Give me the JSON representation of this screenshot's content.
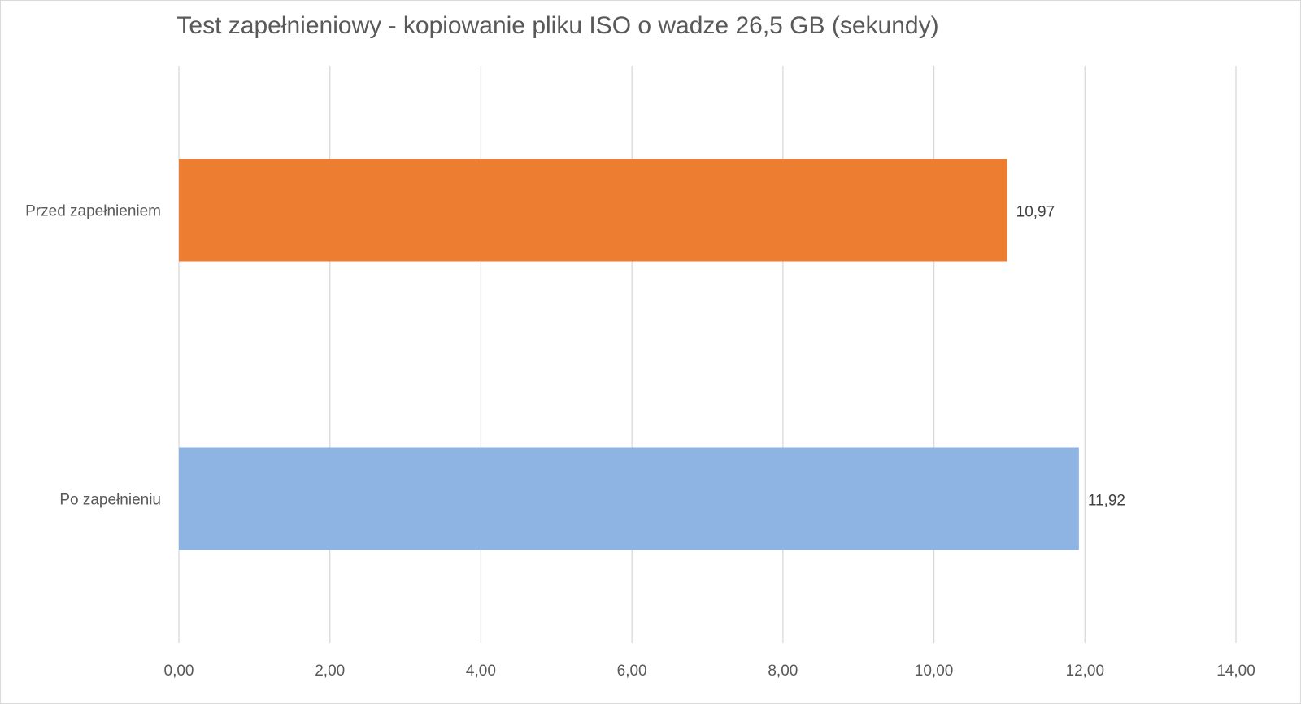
{
  "chart_data": {
    "type": "bar",
    "orientation": "horizontal",
    "title": "Test zapełnieniowy - kopiowanie pliku ISO o wadze 26,5 GB (sekundy)",
    "categories": [
      "Przed zapełnieniem",
      "Po zapełnieniu"
    ],
    "values": [
      10.97,
      11.92
    ],
    "data_labels": [
      "10,97",
      "11,92"
    ],
    "colors": [
      "#ED7D31",
      "#8EB4E3"
    ],
    "xlim": [
      0,
      14
    ],
    "x_ticks": [
      0,
      2,
      4,
      6,
      8,
      10,
      12,
      14
    ],
    "x_tick_labels": [
      "0,00",
      "2,00",
      "4,00",
      "6,00",
      "8,00",
      "10,00",
      "12,00",
      "14,00"
    ],
    "grid": true,
    "legend": "none",
    "gridline_color": "#d9d9d9"
  }
}
